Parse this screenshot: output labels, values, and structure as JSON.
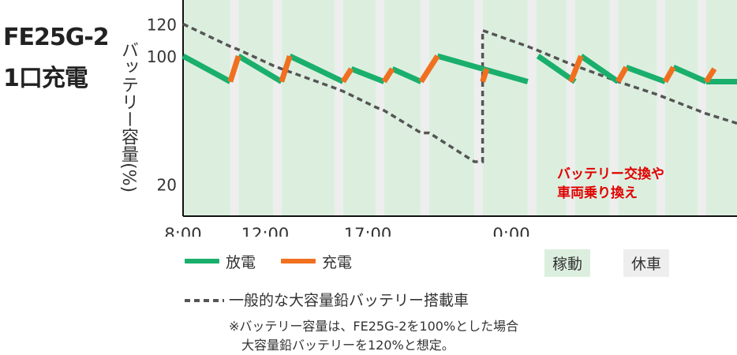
{
  "title_line1": "FE25G-2",
  "title_line2": "1口充電",
  "colors": {
    "discharge": "#1aaf6c",
    "charge": "#f07020",
    "lead": "#555555",
    "operating_bg": "#dcefdf",
    "rest_bg": "#eeeeee",
    "annotation": "#e00000"
  },
  "chart_data": {
    "type": "line",
    "ylabel": "バッテリー容量(%)",
    "x_ticks": [
      "8:00",
      "12:00",
      "17:00",
      "0:00"
    ],
    "y_ticks": [
      "120",
      "100",
      "20"
    ],
    "annotation": [
      "バッテリー交換や",
      "車両乗り換え"
    ],
    "xlim": [
      8.0,
      35.0
    ],
    "ylim": [
      0,
      135
    ],
    "x_tick_values": [
      8.0,
      12.0,
      17.0,
      24.0
    ],
    "y_tick_values": [
      120,
      100,
      20
    ],
    "schedule": {
      "operating": [
        [
          8.0,
          10.3
        ],
        [
          10.7,
          12.4
        ],
        [
          12.8,
          15.4
        ],
        [
          15.8,
          17.4
        ],
        [
          17.8,
          19.6
        ],
        [
          20.0,
          22.2
        ],
        [
          22.6,
          24.8
        ],
        [
          25.2,
          26.7
        ],
        [
          27.1,
          28.8
        ],
        [
          29.2,
          31.1
        ],
        [
          31.5,
          33.1
        ],
        [
          33.5,
          35.0
        ]
      ],
      "rest": [
        [
          10.3,
          10.7
        ],
        [
          12.4,
          12.8
        ],
        [
          15.4,
          15.8
        ],
        [
          17.4,
          17.8
        ],
        [
          19.6,
          20.0
        ],
        [
          22.2,
          22.6
        ],
        [
          24.8,
          25.2
        ],
        [
          26.7,
          27.1
        ],
        [
          28.8,
          29.2
        ],
        [
          31.1,
          31.5
        ],
        [
          33.1,
          33.5
        ]
      ]
    },
    "series": [
      {
        "name": "放電",
        "kind": "discharge",
        "segments": [
          [
            [
              8.0,
              100
            ],
            [
              10.3,
              84
            ]
          ],
          [
            [
              10.7,
              100
            ],
            [
              12.8,
              84
            ]
          ],
          [
            [
              13.2,
              100
            ],
            [
              15.8,
              84
            ]
          ],
          [
            [
              16.2,
              92
            ],
            [
              17.8,
              84
            ]
          ],
          [
            [
              18.2,
              92
            ],
            [
              19.6,
              84
            ]
          ],
          [
            [
              20.4,
              100
            ],
            [
              22.6,
              92
            ]
          ],
          [
            [
              22.6,
              92
            ],
            [
              24.8,
              84
            ]
          ],
          [
            [
              25.3,
              100
            ],
            [
              27.1,
              84
            ]
          ],
          [
            [
              27.4,
              100
            ],
            [
              29.2,
              84
            ]
          ],
          [
            [
              29.6,
              93
            ],
            [
              31.5,
              84
            ]
          ],
          [
            [
              31.9,
              93
            ],
            [
              33.5,
              84
            ]
          ],
          [
            [
              33.5,
              84
            ],
            [
              35.0,
              84
            ]
          ]
        ]
      },
      {
        "name": "充電",
        "kind": "charge",
        "segments": [
          [
            [
              10.3,
              84
            ],
            [
              10.7,
              100
            ]
          ],
          [
            [
              12.8,
              84
            ],
            [
              13.2,
              100
            ]
          ],
          [
            [
              15.8,
              84
            ],
            [
              16.2,
              92
            ]
          ],
          [
            [
              17.8,
              84
            ],
            [
              18.2,
              92
            ]
          ],
          [
            [
              19.6,
              84
            ],
            [
              20.4,
              100
            ]
          ],
          [
            [
              22.6,
              84
            ],
            [
              22.8,
              92
            ]
          ],
          [
            [
              26.9,
              84
            ],
            [
              27.4,
              100
            ]
          ],
          [
            [
              29.2,
              84
            ],
            [
              29.6,
              93
            ]
          ],
          [
            [
              31.5,
              84
            ],
            [
              31.9,
              93
            ]
          ],
          [
            [
              33.5,
              84
            ],
            [
              33.9,
              92
            ]
          ]
        ]
      },
      {
        "name": "一般的な大容量鉛バッテリー搭載車",
        "kind": "lead",
        "points": [
          [
            8.0,
            120
          ],
          [
            10.3,
            106
          ],
          [
            10.7,
            104
          ],
          [
            12.4,
            94
          ],
          [
            12.8,
            92
          ],
          [
            15.4,
            80
          ],
          [
            15.8,
            78
          ],
          [
            17.4,
            68
          ],
          [
            17.8,
            66
          ],
          [
            19.6,
            52
          ],
          [
            20.0,
            52
          ],
          [
            22.2,
            34
          ],
          [
            22.6,
            34
          ],
          [
            22.6,
            116
          ],
          [
            24.8,
            106
          ],
          [
            25.2,
            104
          ],
          [
            26.7,
            96
          ],
          [
            27.1,
            94
          ],
          [
            28.8,
            86
          ],
          [
            29.2,
            84
          ],
          [
            31.1,
            76
          ],
          [
            31.5,
            74
          ],
          [
            33.1,
            66
          ],
          [
            33.5,
            64
          ],
          [
            35.0,
            58
          ]
        ]
      }
    ]
  },
  "legend": {
    "discharge": "放電",
    "charge": "充電",
    "operating": "稼動",
    "rest": "休車",
    "lead": "一般的な大容量鉛バッテリー搭載車"
  },
  "notes": {
    "line1": "※バッテリー容量は、FE25G-2を100%とした場合",
    "line2": "大容量鉛バッテリーを120%と想定。"
  }
}
